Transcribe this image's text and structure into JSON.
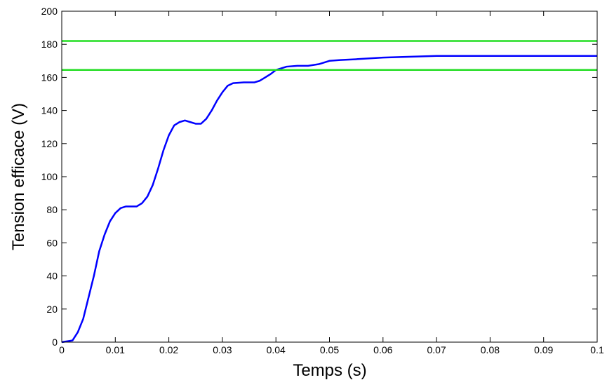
{
  "chart_data": {
    "type": "line",
    "xlabel": "Temps (s)",
    "ylabel": "Tension efficace (V)",
    "xlim": [
      0,
      0.1
    ],
    "ylim": [
      0,
      200
    ],
    "xticks": [
      0,
      0.01,
      0.02,
      0.03,
      0.04,
      0.05,
      0.06,
      0.07,
      0.08,
      0.09,
      0.1
    ],
    "yticks": [
      0,
      20,
      40,
      60,
      80,
      100,
      120,
      140,
      160,
      180,
      200
    ],
    "grid": false,
    "series": [
      {
        "color": "#0000ff",
        "x": [
          0,
          0.002,
          0.003,
          0.004,
          0.005,
          0.006,
          0.007,
          0.008,
          0.009,
          0.01,
          0.011,
          0.012,
          0.013,
          0.014,
          0.015,
          0.016,
          0.017,
          0.018,
          0.019,
          0.02,
          0.021,
          0.022,
          0.023,
          0.024,
          0.025,
          0.026,
          0.027,
          0.028,
          0.029,
          0.03,
          0.031,
          0.032,
          0.034,
          0.036,
          0.037,
          0.038,
          0.039,
          0.04,
          0.042,
          0.044,
          0.046,
          0.048,
          0.05,
          0.052,
          0.055,
          0.06,
          0.07,
          0.08,
          0.09,
          0.1
        ],
        "values": [
          0,
          1,
          6,
          14,
          27,
          40,
          55,
          65,
          73,
          78,
          81,
          82,
          82,
          82,
          84,
          88,
          95,
          105,
          116,
          125,
          131,
          133,
          134,
          133,
          132,
          132,
          135,
          140,
          146,
          151,
          155,
          156.5,
          157,
          157,
          158,
          160,
          162,
          164.5,
          166.5,
          167,
          167,
          168,
          170,
          170.5,
          171,
          172,
          173,
          173,
          173,
          173
        ]
      },
      {
        "color": "#22dd22",
        "x": [
          0,
          0.1
        ],
        "values": [
          182,
          182
        ]
      },
      {
        "color": "#22dd22",
        "x": [
          0,
          0.1
        ],
        "values": [
          164.5,
          164.5
        ]
      }
    ]
  }
}
